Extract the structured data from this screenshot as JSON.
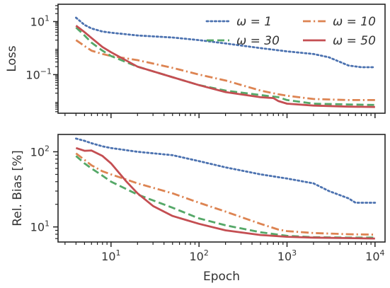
{
  "chart_data": [
    {
      "type": "line",
      "xscale": "log",
      "yscale": "log",
      "xlim": [
        2.5,
        13000
      ],
      "ylim": [
        0.0035,
        45
      ],
      "ylabel": "Loss",
      "xlabel": "",
      "grid": false,
      "legend": "top-right",
      "legend_columns": 2,
      "x_ticks": [
        {
          "value": 10,
          "base": "10",
          "exp": "1"
        },
        {
          "value": 100,
          "base": "10",
          "exp": "2"
        },
        {
          "value": 1000,
          "base": "10",
          "exp": "3"
        },
        {
          "value": 10000,
          "base": "10",
          "exp": "4"
        }
      ],
      "x_tick_labels_shown": false,
      "y_ticks": [
        {
          "value": 10,
          "base": "10",
          "exp": "1"
        },
        {
          "value": 0.1,
          "base": "10",
          "exp": "−1"
        }
      ],
      "series": [
        {
          "name": "ω = 1",
          "color": "#4c72b0",
          "dash": "dotted",
          "x": [
            4,
            5,
            6,
            8,
            10,
            20,
            50,
            100,
            200,
            500,
            1000,
            2000,
            3000,
            5000,
            7000,
            10000
          ],
          "y": [
            14,
            7.5,
            5.5,
            4.2,
            3.8,
            3.0,
            2.5,
            2.0,
            1.5,
            1.0,
            0.75,
            0.6,
            0.45,
            0.22,
            0.19,
            0.19
          ]
        },
        {
          "name": "ω = 10",
          "color": "#dd8452",
          "dash": "dashdot",
          "x": [
            4,
            5,
            6,
            8,
            10,
            20,
            50,
            100,
            200,
            500,
            800,
            1000,
            2000,
            5000,
            10000
          ],
          "y": [
            2.0,
            1.2,
            0.8,
            0.6,
            0.5,
            0.35,
            0.18,
            0.1,
            0.06,
            0.025,
            0.018,
            0.016,
            0.012,
            0.011,
            0.011
          ]
        },
        {
          "name": "ω = 30",
          "color": "#55a868",
          "dash": "dashed",
          "x": [
            4,
            5,
            6,
            8,
            10,
            20,
            50,
            100,
            200,
            500,
            800,
            1000,
            2000,
            5000,
            10000
          ],
          "y": [
            6.0,
            3.0,
            1.6,
            0.8,
            0.5,
            0.2,
            0.08,
            0.04,
            0.025,
            0.017,
            0.014,
            0.011,
            0.008,
            0.0075,
            0.0072
          ]
        },
        {
          "name": "ω = 50",
          "color": "#c44e52",
          "dash": "solid",
          "x": [
            4,
            5,
            6,
            8,
            10,
            20,
            50,
            100,
            200,
            500,
            700,
            800,
            1000,
            2000,
            5000,
            10000
          ],
          "y": [
            7.0,
            4.0,
            2.4,
            1.1,
            0.7,
            0.2,
            0.08,
            0.04,
            0.022,
            0.014,
            0.013,
            0.01,
            0.008,
            0.0068,
            0.0062,
            0.006
          ]
        }
      ]
    },
    {
      "type": "line",
      "xscale": "log",
      "yscale": "log",
      "xlim": [
        2.5,
        13000
      ],
      "ylim": [
        6.3,
        170
      ],
      "ylabel": "Rel. Bias [%]",
      "xlabel": "Epoch",
      "grid": false,
      "x_ticks": [
        {
          "value": 10,
          "base": "10",
          "exp": "1"
        },
        {
          "value": 100,
          "base": "10",
          "exp": "2"
        },
        {
          "value": 1000,
          "base": "10",
          "exp": "3"
        },
        {
          "value": 10000,
          "base": "10",
          "exp": "4"
        }
      ],
      "y_ticks": [
        {
          "value": 100,
          "base": "10",
          "exp": "2"
        },
        {
          "value": 10,
          "base": "10",
          "exp": "1"
        }
      ],
      "series": [
        {
          "color": "#4c72b0",
          "dash": "dotted",
          "x": [
            4,
            5,
            6,
            8,
            10,
            20,
            50,
            100,
            200,
            500,
            1000,
            2000,
            3000,
            5000,
            6000,
            10000
          ],
          "y": [
            150,
            140,
            130,
            118,
            112,
            100,
            90,
            75,
            62,
            50,
            44,
            38,
            30,
            24,
            21,
            21
          ]
        },
        {
          "name": "",
          "color": "#dd8452",
          "dash": "dashdot",
          "x": [
            4,
            5,
            6,
            8,
            10,
            20,
            50,
            100,
            200,
            500,
            800,
            1000,
            2000,
            5000,
            10000
          ],
          "y": [
            95,
            78,
            66,
            55,
            50,
            38,
            28,
            21,
            16,
            11,
            9.2,
            8.8,
            8.3,
            8.0,
            7.9
          ]
        },
        {
          "color": "#55a868",
          "dash": "dashed",
          "x": [
            4,
            5,
            6,
            8,
            10,
            20,
            50,
            100,
            200,
            500,
            1000,
            2000,
            5000,
            10000
          ],
          "y": [
            88,
            70,
            60,
            48,
            40,
            27,
            18,
            13,
            10.5,
            8.5,
            7.6,
            7.3,
            7.2,
            7.2
          ]
        },
        {
          "color": "#c44e52",
          "dash": "solid",
          "x": [
            4,
            5,
            6,
            8,
            10,
            15,
            20,
            30,
            50,
            100,
            200,
            500,
            1000,
            2000,
            5000,
            10000
          ],
          "y": [
            112,
            103,
            104,
            88,
            70,
            40,
            28,
            19,
            14,
            11,
            9.0,
            7.8,
            7.4,
            7.2,
            7.1,
            7.0
          ]
        }
      ]
    }
  ]
}
